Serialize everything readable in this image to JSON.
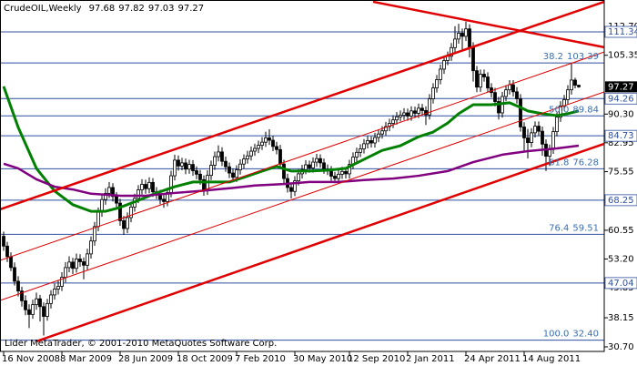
{
  "chart_data": {
    "type": "candlestick",
    "title": "CrudeOIL,Weekly",
    "footer": "Lider MetaTrader, © 2001-2010 MetaQuotes Software Corp.",
    "up_color": "#ffffff",
    "down_color": "#000000",
    "candles": [
      [
        59.0,
        60.2,
        55.3,
        56.5
      ],
      [
        56.5,
        57.6,
        52.4,
        53.8
      ],
      [
        53.8,
        54.9,
        50.1,
        51.0
      ],
      [
        51.0,
        52.3,
        46.4,
        47.5
      ],
      [
        47.5,
        48.8,
        43.6,
        45.0
      ],
      [
        45.0,
        46.1,
        41.0,
        42.5
      ],
      [
        42.5,
        43.9,
        38.8,
        40.2
      ],
      [
        40.2,
        41.6,
        35.5,
        39.0
      ],
      [
        39.0,
        42.8,
        37.9,
        41.5
      ],
      [
        41.5,
        44.6,
        40.2,
        43.0
      ],
      [
        43.0,
        44.0,
        37.2,
        41.0
      ],
      [
        41.0,
        42.1,
        33.6,
        38.5
      ],
      [
        38.5,
        43.0,
        37.4,
        41.8
      ],
      [
        41.8,
        45.2,
        40.5,
        44.0
      ],
      [
        44.0,
        46.9,
        42.8,
        45.5
      ],
      [
        45.5,
        47.6,
        44.1,
        46.2
      ],
      [
        46.2,
        49.8,
        45.0,
        48.5
      ],
      [
        48.5,
        52.4,
        47.2,
        51.0
      ],
      [
        51.0,
        53.9,
        49.8,
        52.4
      ],
      [
        52.4,
        53.5,
        49.3,
        50.8
      ],
      [
        50.8,
        54.6,
        49.7,
        53.2
      ],
      [
        53.2,
        54.4,
        51.2,
        52.5
      ],
      [
        52.5,
        53.6,
        48.0,
        51.6
      ],
      [
        51.6,
        55.8,
        50.4,
        54.5
      ],
      [
        54.5,
        59.0,
        53.3,
        57.8
      ],
      [
        57.8,
        62.7,
        56.6,
        61.5
      ],
      [
        61.5,
        66.4,
        60.3,
        65.2
      ],
      [
        65.2,
        69.6,
        64.0,
        68.4
      ],
      [
        68.4,
        71.3,
        67.1,
        70.0
      ],
      [
        70.0,
        72.9,
        68.8,
        71.5
      ],
      [
        71.5,
        72.6,
        67.9,
        69.2
      ],
      [
        69.2,
        70.3,
        66.2,
        67.5
      ],
      [
        67.5,
        68.6,
        61.7,
        63.0
      ],
      [
        63.0,
        64.2,
        59.4,
        61.0
      ],
      [
        61.0,
        65.1,
        59.8,
        63.8
      ],
      [
        63.8,
        67.8,
        62.6,
        66.5
      ],
      [
        66.5,
        69.9,
        65.3,
        68.7
      ],
      [
        68.7,
        72.1,
        67.5,
        70.9
      ],
      [
        70.9,
        73.6,
        69.7,
        72.3
      ],
      [
        72.3,
        73.5,
        69.9,
        71.2
      ],
      [
        71.2,
        74.1,
        70.0,
        72.8
      ],
      [
        72.8,
        73.9,
        69.1,
        70.4
      ],
      [
        70.4,
        71.6,
        68.5,
        69.8
      ],
      [
        69.8,
        70.9,
        67.2,
        68.5
      ],
      [
        68.5,
        69.7,
        66.3,
        67.9
      ],
      [
        67.9,
        71.4,
        66.7,
        70.2
      ],
      [
        70.2,
        75.8,
        69.0,
        74.5
      ],
      [
        74.5,
        79.9,
        73.3,
        78.5
      ],
      [
        78.5,
        79.7,
        75.8,
        77.0
      ],
      [
        77.0,
        79.1,
        75.9,
        77.8
      ],
      [
        77.8,
        78.9,
        74.9,
        76.2
      ],
      [
        76.2,
        78.6,
        75.0,
        77.4
      ],
      [
        77.4,
        78.5,
        74.5,
        75.8
      ],
      [
        75.8,
        76.9,
        73.6,
        74.9
      ],
      [
        74.9,
        76.0,
        72.2,
        73.5
      ],
      [
        73.5,
        74.6,
        69.4,
        70.8
      ],
      [
        70.8,
        75.9,
        69.6,
        74.6
      ],
      [
        74.6,
        78.4,
        73.4,
        77.2
      ],
      [
        77.2,
        80.7,
        76.0,
        79.4
      ],
      [
        79.4,
        82.3,
        78.2,
        80.6
      ],
      [
        80.6,
        81.8,
        77.0,
        78.2
      ],
      [
        78.2,
        79.4,
        75.5,
        76.8
      ],
      [
        76.8,
        77.9,
        73.9,
        75.2
      ],
      [
        75.2,
        76.3,
        72.8,
        74.1
      ],
      [
        74.1,
        77.2,
        72.9,
        76.0
      ],
      [
        76.0,
        78.7,
        74.8,
        77.5
      ],
      [
        77.5,
        80.0,
        76.3,
        78.8
      ],
      [
        78.8,
        80.9,
        77.6,
        79.6
      ],
      [
        79.6,
        82.0,
        78.4,
        80.8
      ],
      [
        80.8,
        82.7,
        79.6,
        81.5
      ],
      [
        81.5,
        83.5,
        80.3,
        82.3
      ],
      [
        82.3,
        84.4,
        81.1,
        83.1
      ],
      [
        83.1,
        85.8,
        81.9,
        84.2
      ],
      [
        84.2,
        86.4,
        82.4,
        83.6
      ],
      [
        83.6,
        84.7,
        80.8,
        82.0
      ],
      [
        82.0,
        83.2,
        80.0,
        81.2
      ],
      [
        81.2,
        82.4,
        76.3,
        77.5
      ],
      [
        77.5,
        78.6,
        72.5,
        73.8
      ],
      [
        73.8,
        75.0,
        70.2,
        71.5
      ],
      [
        71.5,
        72.7,
        68.7,
        70.5
      ],
      [
        70.5,
        74.4,
        69.3,
        73.2
      ],
      [
        73.2,
        76.2,
        72.0,
        75.0
      ],
      [
        75.0,
        77.3,
        73.8,
        76.1
      ],
      [
        76.1,
        78.5,
        74.9,
        77.3
      ],
      [
        77.3,
        78.4,
        75.3,
        76.5
      ],
      [
        76.5,
        79.2,
        75.3,
        78.0
      ],
      [
        78.0,
        80.1,
        76.8,
        78.9
      ],
      [
        78.9,
        80.0,
        76.6,
        77.8
      ],
      [
        77.8,
        78.9,
        75.0,
        76.2
      ],
      [
        76.2,
        77.4,
        74.7,
        75.9
      ],
      [
        75.9,
        77.0,
        73.2,
        74.4
      ],
      [
        74.4,
        75.5,
        72.6,
        73.8
      ],
      [
        73.8,
        76.1,
        72.6,
        74.9
      ],
      [
        74.9,
        76.8,
        73.7,
        75.6
      ],
      [
        75.6,
        76.7,
        73.8,
        75.0
      ],
      [
        75.0,
        78.6,
        73.8,
        77.4
      ],
      [
        77.4,
        80.5,
        76.2,
        79.3
      ],
      [
        79.3,
        81.7,
        78.1,
        80.5
      ],
      [
        80.5,
        82.6,
        79.3,
        81.4
      ],
      [
        81.4,
        83.9,
        80.2,
        82.7
      ],
      [
        82.7,
        84.7,
        81.5,
        83.5
      ],
      [
        83.5,
        84.6,
        81.7,
        82.9
      ],
      [
        82.9,
        85.5,
        81.7,
        84.3
      ],
      [
        84.3,
        86.4,
        83.1,
        85.2
      ],
      [
        85.2,
        87.2,
        84.0,
        86.0
      ],
      [
        86.0,
        88.3,
        84.8,
        87.1
      ],
      [
        87.1,
        89.1,
        85.9,
        87.9
      ],
      [
        87.9,
        90.0,
        86.7,
        88.8
      ],
      [
        88.8,
        90.8,
        87.6,
        89.6
      ],
      [
        89.6,
        91.2,
        88.4,
        90.0
      ],
      [
        90.0,
        91.8,
        88.8,
        90.6
      ],
      [
        90.6,
        91.7,
        88.6,
        89.8
      ],
      [
        89.8,
        92.3,
        88.6,
        91.1
      ],
      [
        91.1,
        92.2,
        89.3,
        90.5
      ],
      [
        90.5,
        93.0,
        89.3,
        91.8
      ],
      [
        91.8,
        92.9,
        90.0,
        91.2
      ],
      [
        91.2,
        92.3,
        87.5,
        90.1
      ],
      [
        90.1,
        95.4,
        88.9,
        94.2
      ],
      [
        94.2,
        98.2,
        93.0,
        97.0
      ],
      [
        97.0,
        100.3,
        95.8,
        99.1
      ],
      [
        99.1,
        103.0,
        97.9,
        101.8
      ],
      [
        101.8,
        105.2,
        100.6,
        104.0
      ],
      [
        104.0,
        106.3,
        102.8,
        105.1
      ],
      [
        105.1,
        108.5,
        103.9,
        107.3
      ],
      [
        107.3,
        112.8,
        106.1,
        109.5
      ],
      [
        109.5,
        113.4,
        108.3,
        111.0
      ],
      [
        111.0,
        112.2,
        106.5,
        110.2
      ],
      [
        110.2,
        114.0,
        109.0,
        112.1
      ],
      [
        112.1,
        113.3,
        104.8,
        107.5
      ],
      [
        107.5,
        108.7,
        98.6,
        101.4
      ],
      [
        101.4,
        102.6,
        95.9,
        97.2
      ],
      [
        97.2,
        101.7,
        96.0,
        100.5
      ],
      [
        100.5,
        101.7,
        98.6,
        99.8
      ],
      [
        99.8,
        101.0,
        95.8,
        97.0
      ],
      [
        97.0,
        98.2,
        94.6,
        95.8
      ],
      [
        95.8,
        97.0,
        92.3,
        93.5
      ],
      [
        93.5,
        94.7,
        88.9,
        90.6
      ],
      [
        90.6,
        96.0,
        89.4,
        94.8
      ],
      [
        94.8,
        97.7,
        93.6,
        96.5
      ],
      [
        96.5,
        99.0,
        95.3,
        97.8
      ],
      [
        97.8,
        99.0,
        94.8,
        96.0
      ],
      [
        96.0,
        97.2,
        93.0,
        94.2
      ],
      [
        94.2,
        95.4,
        85.8,
        87.0
      ],
      [
        87.0,
        88.2,
        80.5,
        84.2
      ],
      [
        84.2,
        86.5,
        78.9,
        83.0
      ],
      [
        83.0,
        86.7,
        81.8,
        85.5
      ],
      [
        85.5,
        88.4,
        84.3,
        87.2
      ],
      [
        87.2,
        88.4,
        84.7,
        85.9
      ],
      [
        85.9,
        87.1,
        79.6,
        82.6
      ],
      [
        82.6,
        83.8,
        75.7,
        79.5
      ],
      [
        79.5,
        82.5,
        77.0,
        81.3
      ],
      [
        81.3,
        87.0,
        80.1,
        85.8
      ],
      [
        85.8,
        90.7,
        84.6,
        89.5
      ],
      [
        89.5,
        93.6,
        88.3,
        92.4
      ],
      [
        92.4,
        95.2,
        91.2,
        94.0
      ],
      [
        94.0,
        97.7,
        92.8,
        96.5
      ],
      [
        96.5,
        103.4,
        95.3,
        99.0
      ],
      [
        99.0,
        99.6,
        96.9,
        97.68
      ],
      [
        97.68,
        97.82,
        97.03,
        97.27
      ]
    ],
    "xlim": [
      -1,
      165
    ],
    "xticks": [
      {
        "value": 0,
        "label": "16 Nov 2008"
      },
      {
        "value": 16,
        "label": "8 Mar 2009"
      },
      {
        "value": 32,
        "label": "28 Jun 2009"
      },
      {
        "value": 48,
        "label": "18 Oct 2009"
      },
      {
        "value": 64,
        "label": "7 Feb 2010"
      },
      {
        "value": 80,
        "label": "30 May 2010"
      },
      {
        "value": 95,
        "label": "12 Sep 2010"
      },
      {
        "value": 111,
        "label": "2 Jan 2011"
      },
      {
        "value": 127,
        "label": "24 Apr 2011"
      },
      {
        "value": 143,
        "label": "14 Aug 2011"
      }
    ],
    "ylim": [
      29.53,
      119.5
    ],
    "yticks": [
      {
        "value": 30.7,
        "label": "30.70"
      },
      38.15,
      45.85,
      {
        "value": 53.2,
        "label": "53.20"
      },
      60.55,
      75.55,
      82.95,
      {
        "value": 90.3,
        "label": "90.30"
      },
      105.35,
      {
        "value": 112.7,
        "label": "112.70"
      }
    ],
    "moving_averages": [
      {
        "color": "#008000",
        "width": 3,
        "x": [
          0,
          4,
          9,
          14,
          19,
          24,
          28,
          32,
          37,
          42,
          47,
          52,
          57,
          62,
          66,
          71,
          75,
          79,
          84,
          89,
          94,
          99,
          104,
          109,
          114,
          118,
          122,
          125,
          129,
          134,
          139,
          142,
          144,
          148,
          152,
          155,
          158
        ],
        "values": [
          97.4,
          86.9,
          76.4,
          70.6,
          67.1,
          65.4,
          65.4,
          66.4,
          68.2,
          70.1,
          71.7,
          72.9,
          72.9,
          72.9,
          74.1,
          75.7,
          76.9,
          75.7,
          75.7,
          75.9,
          76.4,
          78.7,
          81.0,
          82.2,
          84.5,
          85.7,
          88.0,
          90.4,
          92.7,
          92.7,
          93.2,
          92.0,
          91.1,
          90.4,
          89.9,
          90.4,
          91.1
        ]
      },
      {
        "color": "#800080",
        "width": 2.5,
        "x": [
          0,
          4,
          9,
          14,
          19,
          24,
          32,
          39,
          47,
          54,
          62,
          69,
          77,
          84,
          92,
          99,
          107,
          114,
          122,
          129,
          137,
          144,
          152,
          158
        ],
        "values": [
          77.6,
          76.4,
          73.6,
          71.7,
          71.0,
          69.9,
          69.4,
          69.4,
          70.1,
          70.6,
          71.3,
          72.0,
          72.4,
          72.9,
          72.9,
          73.4,
          73.8,
          74.5,
          75.7,
          78.0,
          79.9,
          80.8,
          81.5,
          82.2
        ]
      }
    ],
    "trendlines": [
      {
        "color": "#e00000",
        "width": 2.5,
        "x": [
          9,
          165
        ],
        "y": [
          32.1,
          82.7
        ]
      },
      {
        "color": "#e00000",
        "width": 2.5,
        "x": [
          -1,
          165
        ],
        "y": [
          65.9,
          119.05
        ]
      },
      {
        "color": "#e00000",
        "width": 1,
        "x": [
          -1,
          165
        ],
        "y": [
          52.84,
          106.2
        ]
      },
      {
        "color": "#e00000",
        "width": 1,
        "x": [
          -1,
          165
        ],
        "y": [
          42.59,
          95.97
        ]
      },
      {
        "color": "#e00000",
        "width": 2.5,
        "x": [
          101.5,
          165
        ],
        "y": [
          119.05,
          107.4
        ]
      }
    ],
    "level_color": "#2f4f9f",
    "levels": [
      111.34,
      94.26,
      84.73,
      68.25,
      47.04
    ],
    "fib_color": "#3a6fb0",
    "fibonacci": [
      {
        "ratio": "38.2",
        "price": 103.39
      },
      {
        "ratio": "50.0",
        "price": 89.84
      },
      {
        "ratio": "61.8",
        "price": 76.28
      },
      {
        "ratio": "76.4",
        "price": 59.51
      },
      {
        "ratio": "100.0",
        "price": {
          "value": 32.4,
          "label": "32.40"
        }
      }
    ]
  }
}
